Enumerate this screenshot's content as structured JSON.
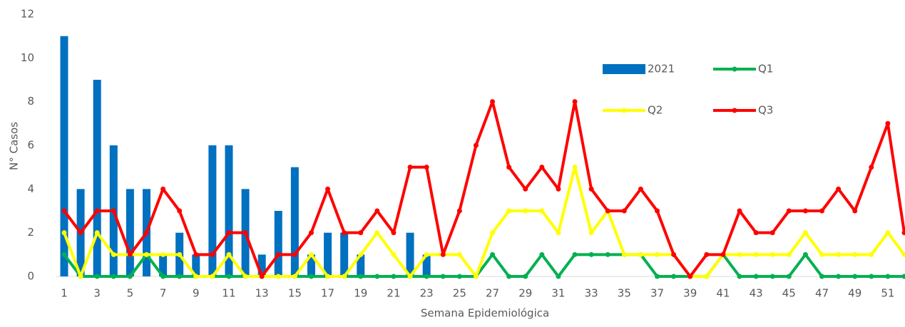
{
  "chart_data": {
    "type": "bar_line",
    "y_label": "N° Casos",
    "x_label": "Semana Epidemiológica",
    "categories": [
      1,
      null,
      3,
      null,
      5,
      null,
      7,
      null,
      9,
      null,
      11,
      null,
      13,
      null,
      15,
      null,
      17,
      null,
      19,
      null,
      21,
      null,
      23,
      null,
      25,
      null,
      27,
      null,
      29,
      null,
      31,
      null,
      33,
      null,
      35,
      null,
      37,
      null,
      39,
      null,
      41,
      null,
      43,
      null,
      45,
      null,
      47,
      null,
      49,
      null,
      51,
      null
    ],
    "ylim": [
      0,
      12
    ],
    "yticks": [
      0,
      2,
      4,
      6,
      8,
      10,
      12
    ],
    "series": [
      {
        "name": "2021",
        "kind": "bar",
        "color": "#0070c0",
        "values": [
          11,
          4,
          9,
          6,
          4,
          4,
          1,
          2,
          1,
          6,
          6,
          4,
          1,
          3,
          5,
          1,
          2,
          2,
          1,
          0,
          0,
          2,
          1,
          null,
          null,
          null,
          null,
          null,
          null,
          null,
          null,
          null,
          null,
          null,
          null,
          null,
          null,
          null,
          null,
          null,
          null,
          null,
          null,
          null,
          null,
          null,
          null,
          null,
          null,
          null,
          null,
          null
        ]
      },
      {
        "name": "Q1",
        "kind": "line",
        "color": "#00b050",
        "values": [
          1,
          0,
          0,
          0,
          0,
          1,
          0,
          0,
          0,
          0,
          0,
          0,
          0,
          0,
          0,
          0,
          0,
          0,
          0,
          0,
          0,
          0,
          0,
          0,
          0,
          0,
          1,
          0,
          0,
          1,
          0,
          1,
          1,
          1,
          1,
          1,
          0,
          0,
          0,
          0,
          1,
          0,
          0,
          0,
          0,
          1,
          0,
          0,
          0,
          0,
          0,
          0
        ]
      },
      {
        "name": "Q2",
        "kind": "line",
        "color": "#ffff00",
        "values": [
          2,
          0,
          2,
          1,
          1,
          1,
          1,
          1,
          0,
          0,
          1,
          0,
          0,
          0,
          0,
          1,
          0,
          0,
          1,
          2,
          1,
          0,
          1,
          1,
          1,
          0,
          2,
          3,
          3,
          3,
          2,
          5,
          2,
          3,
          1,
          1,
          1,
          1,
          0,
          0,
          1,
          1,
          1,
          1,
          1,
          2,
          1,
          1,
          1,
          1,
          2,
          1
        ]
      },
      {
        "name": "Q3",
        "kind": "line",
        "color": "#ff0000",
        "values": [
          3,
          2,
          3,
          3,
          1,
          2,
          4,
          3,
          1,
          1,
          2,
          2,
          0,
          1,
          1,
          2,
          4,
          2,
          2,
          3,
          2,
          5,
          5,
          1,
          3,
          6,
          8,
          5,
          4,
          5,
          4,
          8,
          4,
          3,
          3,
          4,
          3,
          1,
          0,
          1,
          1,
          3,
          2,
          2,
          3,
          3,
          3,
          4,
          3,
          5,
          7,
          2
        ]
      }
    ]
  }
}
